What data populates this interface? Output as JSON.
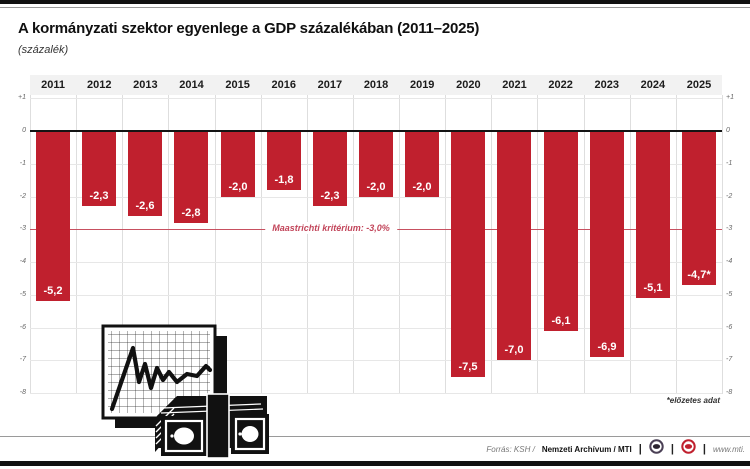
{
  "page": {
    "title": "A kormányzati szektor egyenlege a GDP százalékában (2011–2025)",
    "subtitle": "(százalék)",
    "footnote": "*előzetes adat"
  },
  "chart_data": {
    "type": "bar",
    "title": "A kormányzati szektor egyenlege a GDP százalékában (2011–2025)",
    "ylabel": "százalék",
    "categories": [
      "2011",
      "2012",
      "2013",
      "2014",
      "2015",
      "2016",
      "2017",
      "2018",
      "2019",
      "2020",
      "2021",
      "2022",
      "2023",
      "2024",
      "2025"
    ],
    "values": [
      -5.2,
      -2.3,
      -2.6,
      -2.8,
      -2.0,
      -1.8,
      -2.3,
      -2.0,
      -2.0,
      -7.5,
      -7.0,
      -6.1,
      -6.9,
      -5.1,
      -4.7
    ],
    "value_labels": [
      "-5,2",
      "-2,3",
      "-2,6",
      "-2,8",
      "-2,0",
      "-1,8",
      "-2,3",
      "-2,0",
      "-2,0",
      "-7,5",
      "-7,0",
      "-6,1",
      "-6,9",
      "-5,1",
      "-4,7*"
    ],
    "ylim": [
      -8,
      1
    ],
    "grid": true,
    "bar_color": "#c0202e",
    "y_ticks": [
      {
        "label": "+1",
        "value": 1
      },
      {
        "label": "0",
        "value": 0
      },
      {
        "label": "-1",
        "value": -1
      },
      {
        "label": "-2",
        "value": -2
      },
      {
        "label": "-3",
        "value": -3
      },
      {
        "label": "-4",
        "value": -4
      },
      {
        "label": "-5",
        "value": -5
      },
      {
        "label": "-6",
        "value": -6
      },
      {
        "label": "-7",
        "value": -7
      },
      {
        "label": "-8",
        "value": -8
      }
    ],
    "reference_line": {
      "value": -3.0,
      "label": "Maastrichti kritérium: -3,0%",
      "color": "#c75060"
    },
    "footnote": "*előzetes adat"
  },
  "footer": {
    "source_prefix": "Forrás: KSH /",
    "source_bold": "Nemzeti Archívum / MTI",
    "separator": "|",
    "logos": [
      "mtva-logo",
      "mti-logo"
    ],
    "url": "www.mti."
  },
  "colors": {
    "bar": "#c0202e",
    "zero_line": "#141414",
    "reference_line": "#c75060",
    "header_band": "#f2f2f2",
    "grid_line": "#e7e7e7",
    "top_bottom_bars": "#111111"
  }
}
